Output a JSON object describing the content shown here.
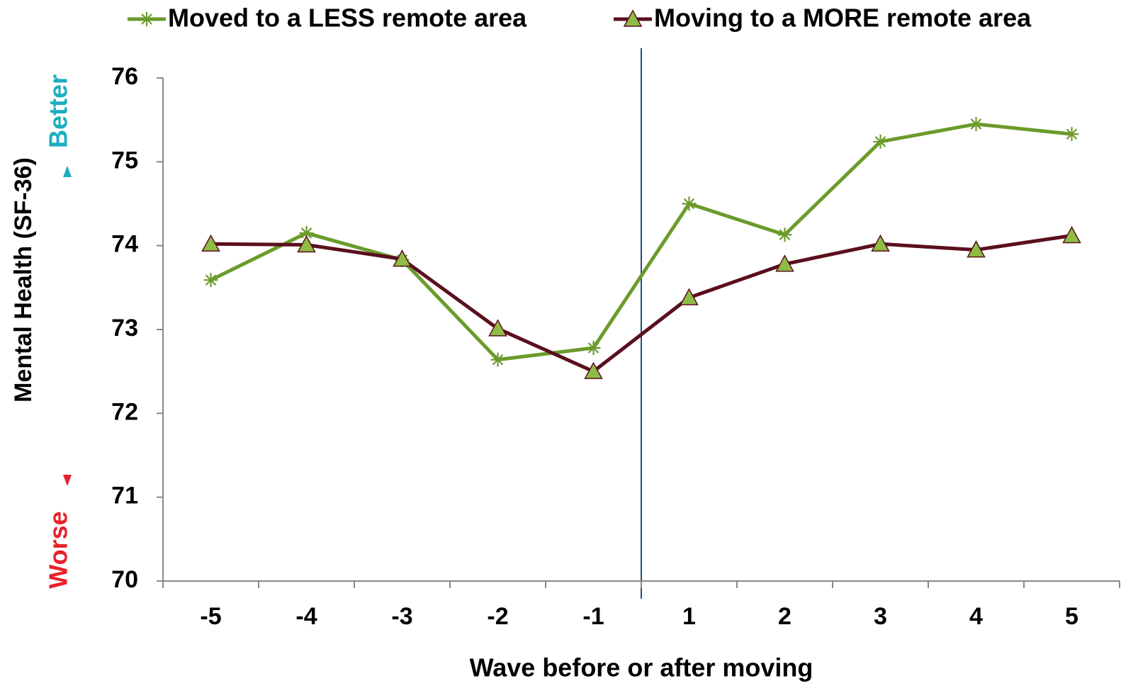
{
  "chart_data": {
    "type": "line",
    "categories": [
      "-5",
      "-4",
      "-3",
      "-2",
      "-1",
      "1",
      "2",
      "3",
      "4",
      "5"
    ],
    "series": [
      {
        "name": "Moved to a LESS remote area",
        "color": "#6b9b2b",
        "marker": "star",
        "values": [
          73.59,
          74.15,
          73.83,
          72.64,
          72.78,
          74.5,
          74.13,
          75.24,
          75.45,
          75.33
        ]
      },
      {
        "name": "Moving to a MORE remote area",
        "color": "#5a0f1c",
        "marker": "triangle",
        "marker_fill": "#8fbc45",
        "values": [
          74.02,
          74.01,
          73.84,
          73.01,
          72.5,
          73.38,
          73.78,
          74.02,
          73.95,
          74.12
        ]
      }
    ],
    "ylim": [
      70,
      76
    ],
    "yticks": [
      70,
      71,
      72,
      73,
      74,
      75,
      76
    ],
    "xlabel": "Wave before or after moving",
    "ylabel": "Mental Health (SF-36)",
    "annotations": [
      {
        "text": "Better",
        "color": "#1aaec0"
      },
      {
        "text": "Worse",
        "color": "#e8202a"
      }
    ],
    "legend": "top"
  }
}
